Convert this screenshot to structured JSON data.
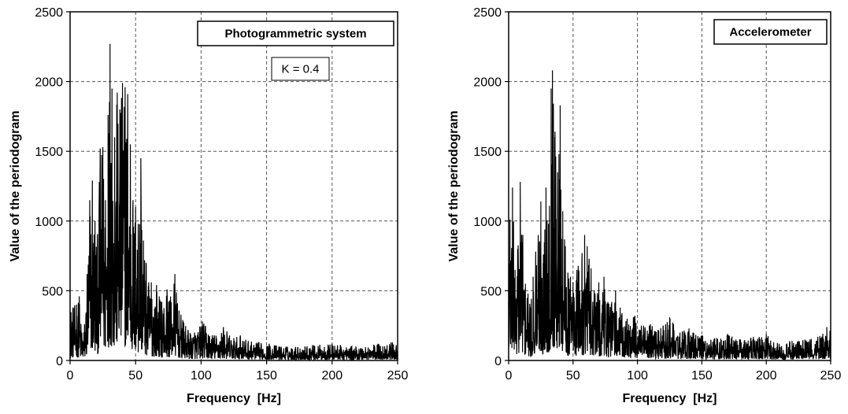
{
  "chart_data": [
    {
      "type": "line",
      "title": "Photogrammetric system",
      "annotation": "K = 0.4",
      "xlabel": "Frequency  [Hz]",
      "ylabel": "Value of the periodogram",
      "xlim": [
        0,
        250
      ],
      "ylim": [
        0,
        2500
      ],
      "xticks": [
        "0",
        "50",
        "100",
        "150",
        "200",
        "250"
      ],
      "yticks": [
        "0",
        "500",
        "1000",
        "1500",
        "2000",
        "2500"
      ],
      "grid": "dashed",
      "legend": "none",
      "color": "#000000",
      "peaks": [
        [
          5,
          400
        ],
        [
          7,
          460
        ],
        [
          9,
          200
        ],
        [
          11,
          260
        ],
        [
          13,
          620
        ],
        [
          15,
          1150
        ],
        [
          17,
          1290
        ],
        [
          19,
          1000
        ],
        [
          21,
          900
        ],
        [
          23,
          1520
        ],
        [
          25,
          1530
        ],
        [
          27,
          1150
        ],
        [
          29,
          1760
        ],
        [
          30.5,
          2270
        ],
        [
          32,
          1950
        ],
        [
          34,
          1600
        ],
        [
          36,
          1920
        ],
        [
          38,
          1800
        ],
        [
          40,
          1990
        ],
        [
          42,
          1960
        ],
        [
          44,
          1910
        ],
        [
          46,
          1550
        ],
        [
          48,
          1150
        ],
        [
          50,
          1100
        ],
        [
          52,
          980
        ],
        [
          54,
          1450
        ],
        [
          56,
          860
        ],
        [
          58,
          700
        ],
        [
          60,
          560
        ],
        [
          62,
          560
        ],
        [
          66,
          540
        ],
        [
          70,
          420
        ],
        [
          74,
          510
        ],
        [
          76,
          430
        ],
        [
          80,
          620
        ],
        [
          82,
          410
        ],
        [
          86,
          290
        ],
        [
          90,
          220
        ],
        [
          95,
          200
        ],
        [
          101,
          280
        ],
        [
          110,
          180
        ],
        [
          117,
          240
        ],
        [
          125,
          160
        ],
        [
          130,
          180
        ],
        [
          136,
          140
        ],
        [
          152,
          120
        ],
        [
          165,
          100
        ],
        [
          185,
          110
        ],
        [
          200,
          120
        ],
        [
          215,
          100
        ],
        [
          235,
          120
        ],
        [
          245,
          130
        ]
      ]
    },
    {
      "type": "line",
      "title": "Accelerometer",
      "xlabel": "Frequency  [Hz]",
      "ylabel": "Value of the periodogram",
      "xlim": [
        0,
        250
      ],
      "ylim": [
        0,
        2500
      ],
      "xticks": [
        "0",
        "50",
        "100",
        "150",
        "200",
        "250"
      ],
      "yticks": [
        "0",
        "500",
        "1000",
        "1500",
        "2000",
        "2500"
      ],
      "grid": "dashed",
      "legend": "none",
      "color": "#000000",
      "peaks": [
        [
          1,
          1010
        ],
        [
          3,
          1240
        ],
        [
          5,
          650
        ],
        [
          7,
          800
        ],
        [
          9,
          1280
        ],
        [
          11,
          900
        ],
        [
          13,
          550
        ],
        [
          15,
          480
        ],
        [
          17,
          380
        ],
        [
          19,
          600
        ],
        [
          21,
          780
        ],
        [
          23,
          900
        ],
        [
          25,
          1140
        ],
        [
          27,
          760
        ],
        [
          29,
          1240
        ],
        [
          31,
          980
        ],
        [
          33,
          1950
        ],
        [
          34,
          2080
        ],
        [
          36,
          1640
        ],
        [
          38,
          1350
        ],
        [
          40,
          1830
        ],
        [
          42,
          1070
        ],
        [
          44,
          820
        ],
        [
          46,
          630
        ],
        [
          48,
          600
        ],
        [
          50,
          560
        ],
        [
          53,
          650
        ],
        [
          57,
          770
        ],
        [
          59,
          900
        ],
        [
          61,
          820
        ],
        [
          64,
          660
        ],
        [
          67,
          480
        ],
        [
          70,
          560
        ],
        [
          74,
          600
        ],
        [
          77,
          420
        ],
        [
          80,
          420
        ],
        [
          83,
          500
        ],
        [
          88,
          340
        ],
        [
          92,
          300
        ],
        [
          98,
          320
        ],
        [
          103,
          250
        ],
        [
          110,
          260
        ],
        [
          116,
          220
        ],
        [
          120,
          250
        ],
        [
          125,
          310
        ],
        [
          133,
          200
        ],
        [
          140,
          230
        ],
        [
          150,
          180
        ],
        [
          160,
          160
        ],
        [
          170,
          190
        ],
        [
          180,
          150
        ],
        [
          190,
          170
        ],
        [
          200,
          190
        ],
        [
          210,
          120
        ],
        [
          220,
          140
        ],
        [
          230,
          150
        ],
        [
          240,
          170
        ],
        [
          247,
          240
        ]
      ]
    }
  ]
}
